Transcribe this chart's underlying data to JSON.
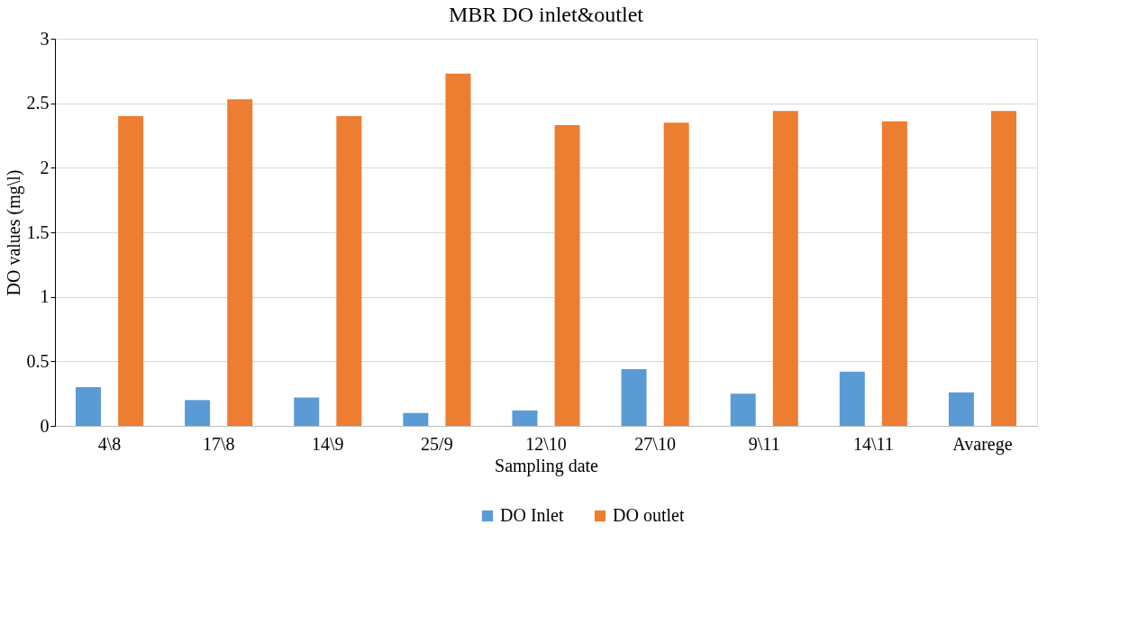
{
  "chart_data": {
    "type": "bar",
    "title": "MBR DO inlet&outlet",
    "xlabel": "Sampling date",
    "ylabel": "DO values (mg\\l)",
    "categories": [
      "4\\8",
      "17\\8",
      "14\\9",
      "25/9",
      "12\\10",
      "27\\10",
      "9\\11",
      "14\\11",
      "Avarege"
    ],
    "series": [
      {
        "name": "DO Inlet",
        "color": "#5b9bd5",
        "values": [
          0.3,
          0.2,
          0.22,
          0.1,
          0.12,
          0.44,
          0.25,
          0.42,
          0.26
        ]
      },
      {
        "name": "DO outlet",
        "color": "#ed7d31",
        "values": [
          2.4,
          2.53,
          2.4,
          2.73,
          2.33,
          2.35,
          2.44,
          2.36,
          2.44
        ]
      }
    ],
    "ylim": [
      0,
      3
    ],
    "yticks": [
      {
        "value": 0,
        "label": "0"
      },
      0.5,
      {
        "value": 1,
        "label": "1"
      },
      1.5,
      {
        "value": 2,
        "label": "2"
      },
      2.5,
      {
        "value": 3,
        "label": "3"
      }
    ],
    "grid": "y",
    "legend": "bottom"
  }
}
